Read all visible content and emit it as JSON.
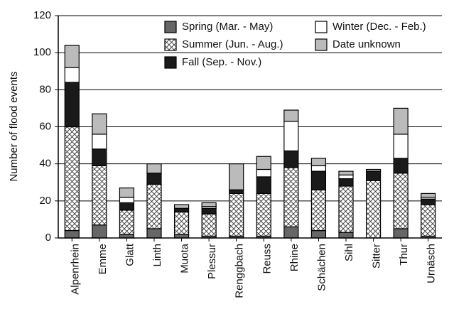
{
  "chart_data": {
    "type": "stacked-bar",
    "y_label": "Number of flood events",
    "categories": [
      "Alpenrhein",
      "Emme",
      "Glatt",
      "Linth",
      "Muota",
      "Plessur",
      "Renggbach",
      "Reuss",
      "Rhine",
      "Schächen",
      "Sihl",
      "Sitter",
      "Thur",
      "Urnäsch"
    ],
    "series": [
      {
        "name": "Spring (Mar. - May)",
        "color": "#666666",
        "values": [
          4,
          7,
          2,
          5,
          2,
          1,
          1,
          1,
          6,
          4,
          3,
          0,
          5,
          1
        ]
      },
      {
        "name": "Summer (Jun. - Aug.)",
        "color": "#ffffff",
        "hatch": "cross",
        "values": [
          56,
          32,
          13,
          24,
          12,
          12,
          23,
          23,
          32,
          22,
          25,
          31,
          30,
          17
        ]
      },
      {
        "name": "Fall (Sep. - Nov.)",
        "color": "#1a1a1a",
        "values": [
          24,
          9,
          4,
          6,
          2,
          3,
          2,
          9,
          9,
          10,
          4,
          5,
          8,
          3
        ]
      },
      {
        "name": "Winter (Dec. - Feb.)",
        "color": "#ffffff",
        "values": [
          8,
          8,
          3,
          0,
          0,
          1,
          0,
          4,
          16,
          3,
          2,
          0,
          13,
          1
        ]
      },
      {
        "name": "Date unknown",
        "color": "#bbbbbb",
        "values": [
          12,
          11,
          5,
          5,
          2,
          2,
          14,
          7,
          6,
          4,
          2,
          1,
          14,
          2
        ]
      }
    ],
    "ylim": [
      0,
      120
    ],
    "yticks": [
      0,
      20,
      40,
      60,
      80,
      100,
      120
    ],
    "grid": true
  }
}
